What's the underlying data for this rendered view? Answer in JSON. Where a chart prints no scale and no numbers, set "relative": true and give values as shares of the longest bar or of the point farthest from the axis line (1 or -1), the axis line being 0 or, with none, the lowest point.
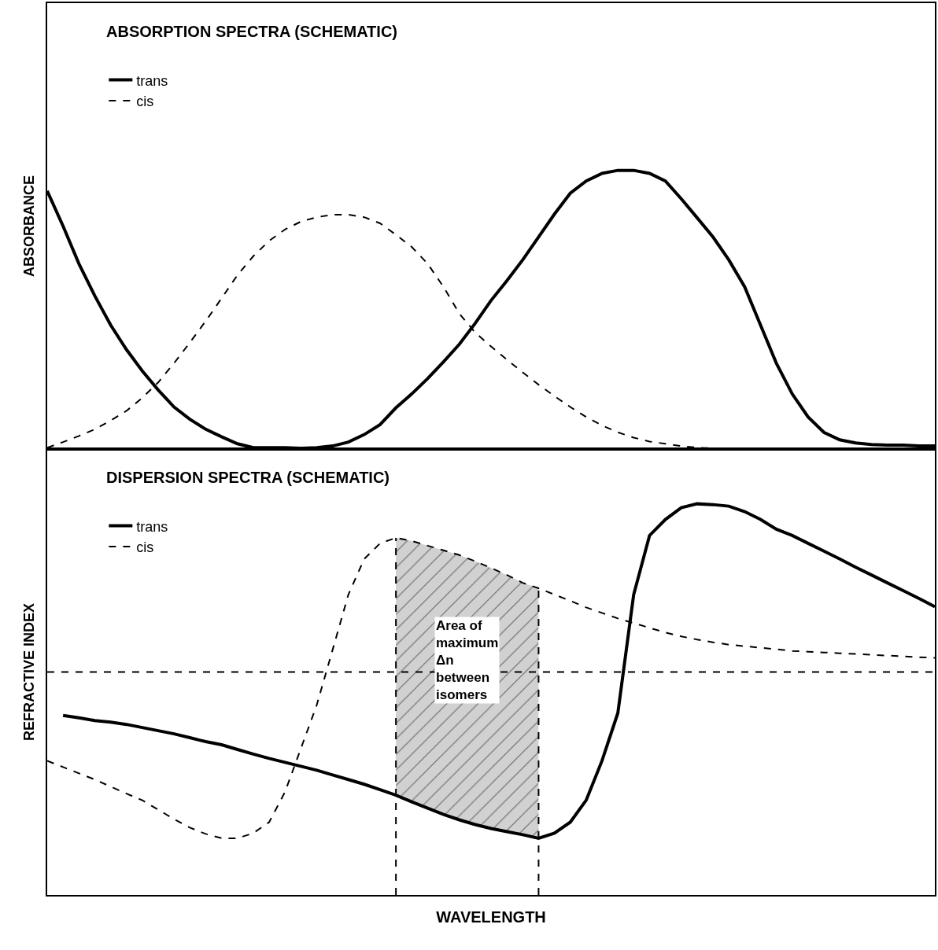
{
  "chart_data": [
    {
      "type": "line",
      "title": "ABSORPTION SPECTRA (SCHEMATIC)",
      "ylabel": "ABSORBANCE",
      "relative": true,
      "tick_labels": false,
      "legend": "top left",
      "marker": "none",
      "categories": [
        null,
        null,
        null,
        null,
        null,
        null,
        null,
        null,
        null,
        null,
        null,
        null,
        null,
        null,
        null,
        null,
        null,
        null,
        null,
        null,
        null,
        null,
        null,
        null,
        null,
        null,
        null,
        null,
        null,
        null,
        null,
        null,
        null,
        null,
        null,
        null,
        null,
        null,
        null,
        null,
        null,
        null,
        null,
        null,
        null,
        null,
        null,
        null,
        null,
        null,
        null,
        null,
        null,
        null,
        null,
        null,
        null
      ],
      "series": [
        {
          "name": "trans",
          "color": "#000000",
          "line_style": "solid",
          "values": [
            0.926,
            0.8,
            0.665,
            0.55,
            0.445,
            0.357,
            0.28,
            0.212,
            0.151,
            0.107,
            0.071,
            0.044,
            0.019,
            0.005,
            0.005,
            0.005,
            0.003,
            0.005,
            0.011,
            0.025,
            0.052,
            0.088,
            0.148,
            0.198,
            0.253,
            0.313,
            0.376,
            0.451,
            0.533,
            0.604,
            0.679,
            0.761,
            0.843,
            0.918,
            0.962,
            0.989,
            1.0,
            1.0,
            0.989,
            0.962,
            0.898,
            0.83,
            0.761,
            0.679,
            0.582,
            0.445,
            0.308,
            0.198,
            0.115,
            0.06,
            0.033,
            0.022,
            0.016,
            0.014,
            0.014,
            0.011,
            0.011
          ]
        },
        {
          "name": "cis",
          "color": "#000000",
          "line_style": "dashed",
          "values": [
            0.005,
            0.025,
            0.047,
            0.071,
            0.102,
            0.137,
            0.184,
            0.239,
            0.308,
            0.382,
            0.459,
            0.541,
            0.624,
            0.692,
            0.747,
            0.788,
            0.816,
            0.832,
            0.841,
            0.841,
            0.832,
            0.81,
            0.769,
            0.725,
            0.665,
            0.582,
            0.486,
            0.418,
            0.368,
            0.321,
            0.275,
            0.231,
            0.19,
            0.151,
            0.115,
            0.085,
            0.06,
            0.041,
            0.027,
            0.019,
            0.011,
            0.005,
            0.003,
            0,
            0,
            0,
            0,
            0,
            0,
            0,
            0,
            0,
            0,
            0,
            0,
            0,
            0
          ]
        }
      ]
    },
    {
      "type": "line",
      "title": "DISPERSION SPECTRA (SCHEMATIC)",
      "ylabel": "REFRACTIVE INDEX",
      "xlabel": "WAVELENGTH",
      "relative": true,
      "tick_labels": false,
      "legend": "top left",
      "marker": "none",
      "categories": [
        null,
        null,
        null,
        null,
        null,
        null,
        null,
        null,
        null,
        null,
        null,
        null,
        null,
        null,
        null,
        null,
        null,
        null,
        null,
        null,
        null,
        null,
        null,
        null,
        null,
        null,
        null,
        null,
        null,
        null,
        null,
        null,
        null,
        null,
        null,
        null,
        null,
        null,
        null,
        null,
        null,
        null,
        null,
        null,
        null,
        null,
        null,
        null,
        null,
        null,
        null,
        null,
        null,
        null,
        null,
        null,
        null
      ],
      "series": [
        {
          "name": "trans",
          "color": "#000000",
          "line_style": "solid",
          "values": [
            null,
            0.459,
            0.453,
            0.446,
            0.442,
            0.436,
            0.428,
            0.42,
            0.412,
            0.402,
            0.392,
            0.384,
            0.372,
            0.36,
            0.349,
            0.339,
            0.329,
            0.319,
            0.307,
            0.295,
            0.283,
            0.269,
            0.255,
            0.238,
            0.222,
            0.206,
            0.192,
            0.18,
            0.17,
            0.162,
            0.154,
            0.145,
            0.158,
            0.186,
            0.242,
            0.343,
            0.465,
            0.768,
            0.919,
            0.96,
            0.99,
            1.0,
            0.998,
            0.994,
            0.98,
            0.96,
            0.935,
            0.919,
            0.899,
            0.879,
            0.859,
            0.838,
            0.818,
            0.798,
            0.778,
            0.758,
            0.737
          ]
        },
        {
          "name": "cis",
          "color": "#000000",
          "line_style": "dashed",
          "values": [
            0.343,
            0.327,
            0.311,
            0.295,
            0.277,
            0.259,
            0.242,
            0.218,
            0.194,
            0.172,
            0.156,
            0.145,
            0.145,
            0.158,
            0.186,
            0.263,
            0.374,
            0.485,
            0.626,
            0.768,
            0.859,
            0.899,
            0.913,
            0.905,
            0.893,
            0.881,
            0.869,
            0.853,
            0.836,
            0.818,
            0.798,
            0.784,
            0.768,
            0.752,
            0.735,
            0.721,
            0.707,
            0.695,
            0.683,
            0.671,
            0.661,
            0.653,
            0.646,
            0.64,
            0.636,
            0.632,
            0.628,
            0.624,
            0.622,
            0.62,
            0.618,
            0.616,
            0.614,
            0.612,
            0.61,
            0.608,
            0.606
          ],
          "lower": [
            null,
            null,
            null,
            null,
            null,
            null,
            null,
            null,
            null,
            null,
            null,
            null,
            null,
            null,
            null,
            null,
            null,
            null,
            null,
            null,
            null,
            null,
            0.255,
            0.238,
            0.222,
            0.206,
            0.192,
            0.18,
            0.17,
            0.162,
            0.154,
            0.145,
            null,
            null,
            null,
            null,
            null,
            null,
            null,
            null,
            null,
            null,
            null,
            null,
            null,
            null,
            null,
            null,
            null,
            null,
            null,
            null,
            null,
            null,
            null,
            null,
            null
          ],
          "upper": [
            null,
            null,
            null,
            null,
            null,
            null,
            null,
            null,
            null,
            null,
            null,
            null,
            null,
            null,
            null,
            null,
            null,
            null,
            null,
            null,
            null,
            null,
            0.913,
            0.905,
            0.893,
            0.881,
            0.869,
            0.853,
            0.836,
            0.818,
            0.798,
            0.784,
            null,
            null,
            null,
            null,
            null,
            null,
            null,
            null,
            null,
            null,
            null,
            null,
            null,
            null,
            null,
            null,
            null,
            null,
            null,
            null,
            null,
            null,
            null,
            null,
            null
          ]
        }
      ],
      "ref_lines": [
        {
          "axis": "y",
          "value": 0.57,
          "color": "#000000",
          "line_style": "dashed"
        }
      ],
      "annotations": [
        "Area of maximum Δn between isomers"
      ]
    }
  ]
}
